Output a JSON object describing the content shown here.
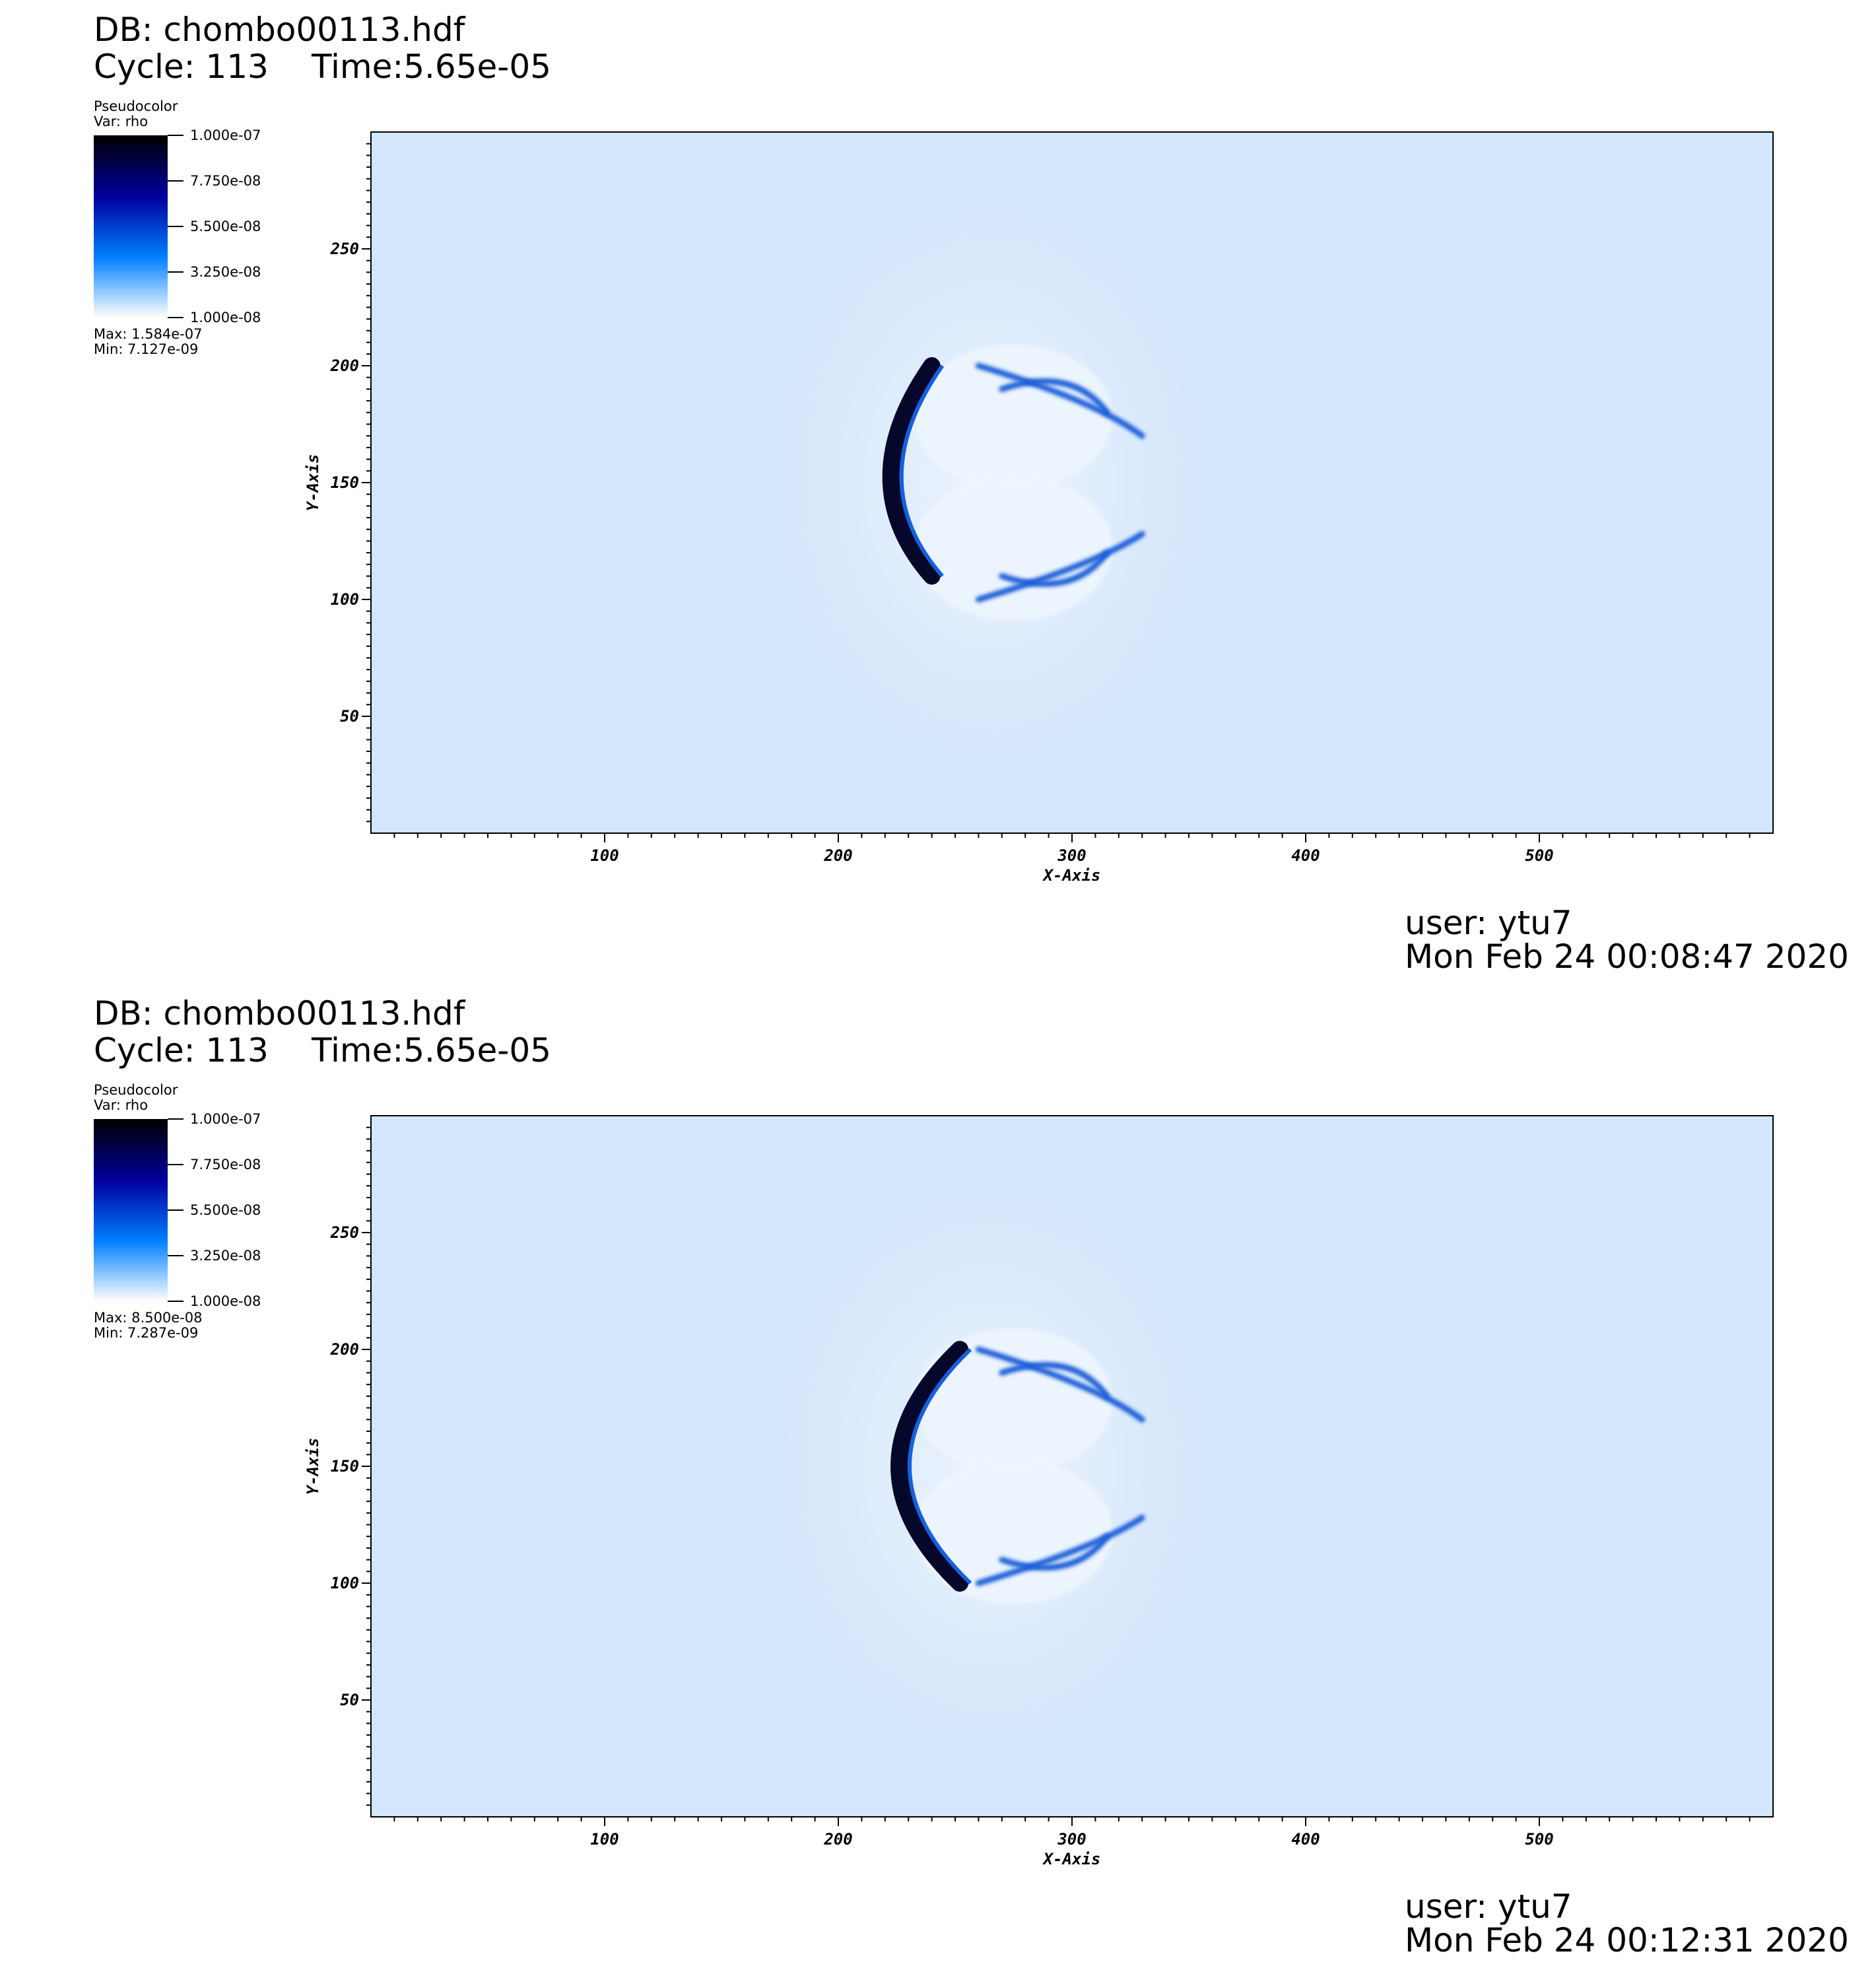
{
  "panels": [
    {
      "db": "DB: chombo00113.hdf",
      "cycle": "Cycle: 113",
      "time": "Time:5.65e-05",
      "legend": {
        "title": "Pseudocolor",
        "var": "Var: rho",
        "labels": [
          "1.000e-07",
          "7.750e-08",
          "5.500e-08",
          "3.250e-08",
          "1.000e-08"
        ],
        "max": "Max:  1.584e-07",
        "min": "Min:  7.127e-09"
      },
      "user": "user: ytu7",
      "date": "Mon Feb 24 00:08:47 2020"
    },
    {
      "db": "DB: chombo00113.hdf",
      "cycle": "Cycle: 113",
      "time": "Time:5.65e-05",
      "legend": {
        "title": "Pseudocolor",
        "var": "Var: rho",
        "labels": [
          "1.000e-07",
          "7.750e-08",
          "5.500e-08",
          "3.250e-08",
          "1.000e-08"
        ],
        "max": "Max:  8.500e-08",
        "min": "Min:  7.287e-09"
      },
      "user": "user: ytu7",
      "date": "Mon Feb 24 00:12:31 2020"
    }
  ],
  "colors": {
    "background_field": "#d4e6fb",
    "colormap": [
      "#ffffff",
      "#0080ff",
      "#0000a0",
      "#000000"
    ],
    "frame": "#000000"
  },
  "chart_data": [
    {
      "type": "heatmap",
      "variable": "rho",
      "xlabel": "X-Axis",
      "ylabel": "Y-Axis",
      "xlim": [
        0,
        600
      ],
      "ylim": [
        0,
        300
      ],
      "x_ticks": [
        100,
        200,
        300,
        400,
        500
      ],
      "y_ticks": [
        50,
        100,
        150,
        200,
        250
      ],
      "colorbar_range": [
        1e-08,
        1e-07
      ],
      "colorbar_ticks": [
        1e-07,
        7.75e-08,
        5.5e-08,
        3.25e-08,
        1e-08
      ],
      "data_max": 1.584e-07,
      "data_min": 7.127e-09,
      "grid": false
    },
    {
      "type": "heatmap",
      "variable": "rho",
      "xlabel": "X-Axis",
      "ylabel": "Y-Axis",
      "xlim": [
        0,
        600
      ],
      "ylim": [
        0,
        300
      ],
      "x_ticks": [
        100,
        200,
        300,
        400,
        500
      ],
      "y_ticks": [
        50,
        100,
        150,
        200,
        250
      ],
      "colorbar_range": [
        1e-08,
        1e-07
      ],
      "colorbar_ticks": [
        1e-07,
        7.75e-08,
        5.5e-08,
        3.25e-08,
        1e-08
      ],
      "data_max": 8.5e-08,
      "data_min": 7.287e-09,
      "grid": false
    }
  ]
}
